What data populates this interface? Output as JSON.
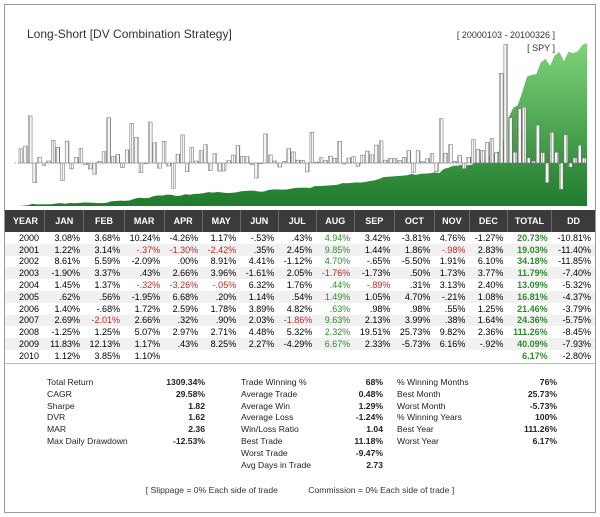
{
  "chart": {
    "title": "Long-Short [DV Combination Strategy]",
    "date_range": "[ 20000103 - 20100326 ]",
    "symbol": "[ SPY ]"
  },
  "table": {
    "headers": [
      "YEAR",
      "JAN",
      "FEB",
      "MAR",
      "APR",
      "MAY",
      "JUN",
      "JUL",
      "AUG",
      "SEP",
      "OCT",
      "NOV",
      "DEC",
      "TOTAL",
      "DD"
    ],
    "rows": [
      {
        "year": "2000",
        "months": [
          "3.08%",
          "3.68%",
          "10.24%",
          "-4.26%",
          "1.17%",
          "-.53%",
          ".43%",
          "4.94%",
          "3.42%",
          "-3.81%",
          "4.76%",
          "-1.27%"
        ],
        "total": "20.73%",
        "dd": "-10.81%"
      },
      {
        "year": "2001",
        "months": [
          "1.22%",
          "3.14%",
          "-.37%",
          "-1.30%",
          "-2.42%",
          ".35%",
          "2.45%",
          "9.85%",
          "1.44%",
          "1.86%",
          "-.98%",
          "2.83%"
        ],
        "total": "19.03%",
        "dd": "-11.40%"
      },
      {
        "year": "2002",
        "months": [
          "8.61%",
          "5.59%",
          "-2.09%",
          ".00%",
          "8.91%",
          "4.41%",
          "-1.12%",
          "4.70%",
          "-.65%",
          "-5.50%",
          "1.91%",
          "6.10%"
        ],
        "total": "34.18%",
        "dd": "-11.85%"
      },
      {
        "year": "2003",
        "months": [
          "-1.90%",
          "3.37%",
          ".43%",
          "2.66%",
          "3.96%",
          "-1.61%",
          "2.05%",
          "-1.76%",
          "-1.73%",
          ".50%",
          "1.73%",
          "3.77%"
        ],
        "total": "11.79%",
        "dd": "-7.40%"
      },
      {
        "year": "2004",
        "months": [
          "1.45%",
          "1.37%",
          "-.32%",
          "-3.26%",
          "-.05%",
          "6.32%",
          "1.76%",
          ".44%",
          "-.89%",
          ".31%",
          "3.13%",
          "2.40%"
        ],
        "total": "13.09%",
        "dd": "-5.32%"
      },
      {
        "year": "2005",
        "months": [
          ".62%",
          ".56%",
          "-1.95%",
          "6.68%",
          ".20%",
          "1.14%",
          ".54%",
          "1.49%",
          "1.05%",
          "4.70%",
          "-.21%",
          "1.08%"
        ],
        "total": "16.81%",
        "dd": "-4.37%"
      },
      {
        "year": "2006",
        "months": [
          "1.40%",
          "-.68%",
          "1.72%",
          "2.59%",
          "1.78%",
          "3.89%",
          "4.82%",
          ".63%",
          ".98%",
          ".98%",
          ".55%",
          "1.25%"
        ],
        "total": "21.46%",
        "dd": "-3.79%"
      },
      {
        "year": "2007",
        "months": [
          "2.69%",
          "-2.01%",
          "2.66%",
          ".32%",
          ".90%",
          "2.03%",
          "-1.86%",
          "9.63%",
          "2.13%",
          "3.99%",
          ".38%",
          "1.64%"
        ],
        "total": "24.36%",
        "dd": "-5.75%"
      },
      {
        "year": "2008",
        "months": [
          "-1.25%",
          "1.25%",
          "5.07%",
          "2.97%",
          "2.71%",
          "4.48%",
          "5.32%",
          "2.32%",
          "19.51%",
          "25.73%",
          "9.82%",
          "2.36%"
        ],
        "total": "111.26%",
        "dd": "-8.45%"
      },
      {
        "year": "2009",
        "months": [
          "11.83%",
          "12.13%",
          "1.17%",
          ".43%",
          "8.25%",
          "2.27%",
          "-4.29%",
          "6.67%",
          "2.33%",
          "-5.73%",
          "6.16%",
          "-.92%"
        ],
        "total": "40.09%",
        "dd": "-7.93%"
      },
      {
        "year": "2010",
        "months": [
          "1.12%",
          "3.85%",
          "1.10%",
          "",
          "",
          "",
          "",
          "",
          "",
          "",
          "",
          ""
        ],
        "total": "6.17%",
        "dd": "-2.80%"
      }
    ]
  },
  "stats_col1": [
    {
      "label": "Total Return",
      "value": "1309.34%"
    },
    {
      "label": "CAGR",
      "value": "29.58%"
    },
    {
      "label": "Sharpe",
      "value": "1.82"
    },
    {
      "label": "DVR",
      "value": "1.62"
    },
    {
      "label": "MAR",
      "value": "2.36"
    },
    {
      "label": "Max Daily Drawdown",
      "value": "-12.53%"
    }
  ],
  "stats_col2": [
    {
      "label": "Trade Winning %",
      "value": "68%"
    },
    {
      "label": "Average Trade",
      "value": "0.48%"
    },
    {
      "label": "Average Win",
      "value": "1.29%"
    },
    {
      "label": "Average Loss",
      "value": "-1.24%"
    },
    {
      "label": "Win/Loss Ratio",
      "value": "1.04"
    },
    {
      "label": "Best Trade",
      "value": "11.18%"
    },
    {
      "label": "Worst Trade",
      "value": "-9.47%"
    },
    {
      "label": "Avg Days in Trade",
      "value": "2.73"
    }
  ],
  "stats_col3": [
    {
      "label": "% Winning Months",
      "value": "76%"
    },
    {
      "label": "Best Month",
      "value": "25.73%"
    },
    {
      "label": "Worst Month",
      "value": "-5.73%"
    },
    {
      "label": "% Winning Years",
      "value": "100%"
    },
    {
      "label": "Best Year",
      "value": "111.26%"
    },
    {
      "label": "Worst Year",
      "value": "6.17%"
    }
  ],
  "footer": {
    "slippage": "[ Slippage = 0% Each side of trade",
    "commission": "Commission = 0% Each side of trade ]"
  },
  "colors": {
    "equity_green": "#2e9e3e",
    "header_bg": "#3b3b3b",
    "positive_total": "#2f8a2f",
    "negative": "#c02525"
  }
}
